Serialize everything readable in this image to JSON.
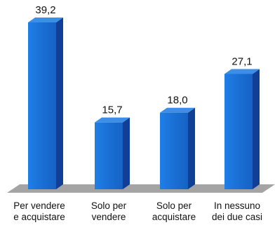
{
  "chart_data": {
    "type": "bar",
    "style": "3d",
    "categories": [
      [
        "Per vendere",
        "e acquistare"
      ],
      [
        "Solo per",
        "vendere"
      ],
      [
        "Solo per",
        "acquistare"
      ],
      [
        "In nessuno",
        "dei due casi"
      ]
    ],
    "values": [
      39.2,
      15.7,
      18.0,
      27.1
    ],
    "value_labels": [
      "39,2",
      "15,7",
      "18,0",
      "27,1"
    ],
    "ylim": [
      0,
      42
    ],
    "grid": false,
    "colors": {
      "bar_front": "#1b73d8",
      "bar_side": "#113f97",
      "bar_top": "#3c8ee6",
      "floor": "#a4a4a4"
    }
  }
}
